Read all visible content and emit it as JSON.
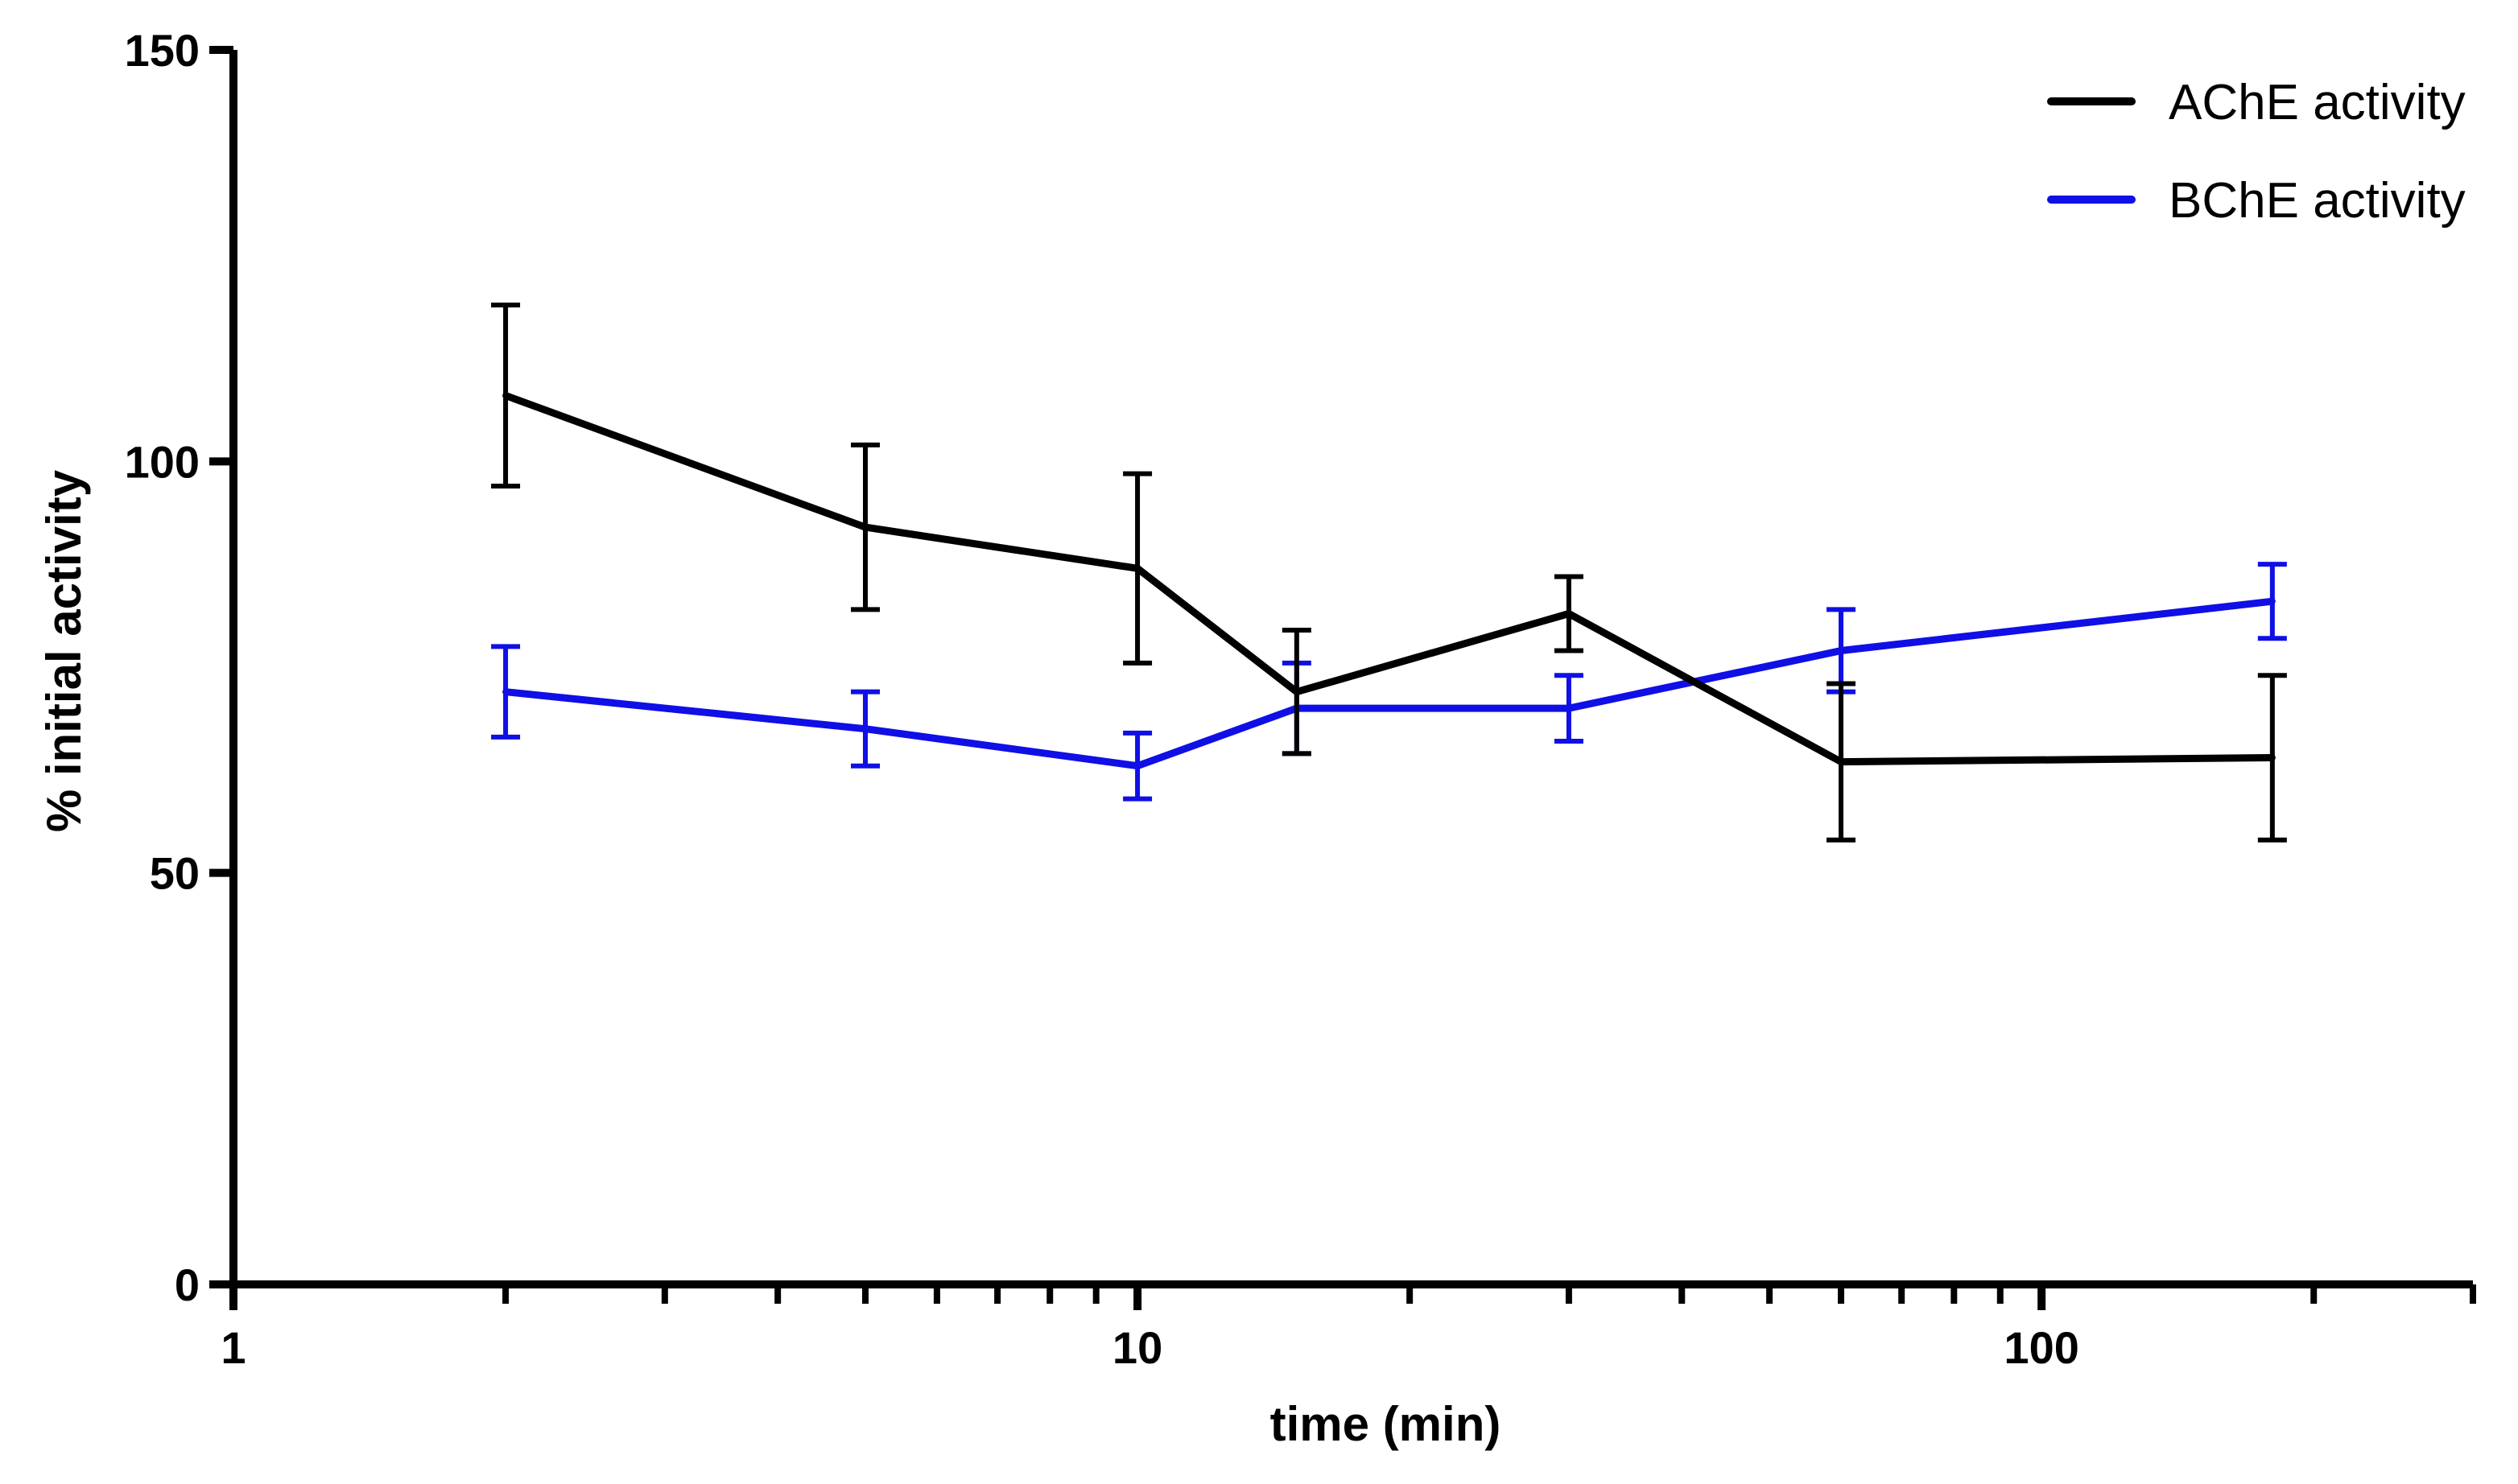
{
  "chart_data": {
    "type": "line",
    "title": "",
    "xlabel": "time (min)",
    "ylabel": "% initial activity",
    "x_scale": "log",
    "xlim": [
      1,
      300
    ],
    "ylim": [
      0,
      150
    ],
    "x_ticks": [
      1,
      10,
      100
    ],
    "x_tick_labels": [
      "1",
      "10",
      "100"
    ],
    "y_ticks": [
      0,
      50,
      100,
      150
    ],
    "y_tick_labels": [
      "0",
      "50",
      "100",
      "150"
    ],
    "grid": false,
    "legend_position": "top-right",
    "series": [
      {
        "name": "AChE activity",
        "color": "#000000",
        "x": [
          2,
          5,
          10,
          15,
          30,
          60,
          180
        ],
        "y": [
          108,
          92,
          87,
          72,
          81.5,
          63.5,
          64
        ],
        "err": [
          11,
          10,
          11.5,
          7.5,
          4.5,
          9.5,
          10
        ]
      },
      {
        "name": "BChE activity",
        "color": "#0f0fe6",
        "x": [
          2,
          5,
          10,
          15,
          30,
          60,
          180
        ],
        "y": [
          72,
          67.5,
          63,
          70,
          70,
          77,
          83
        ],
        "err": [
          5.5,
          4.5,
          4,
          5.5,
          4,
          5,
          4.5
        ]
      }
    ]
  }
}
